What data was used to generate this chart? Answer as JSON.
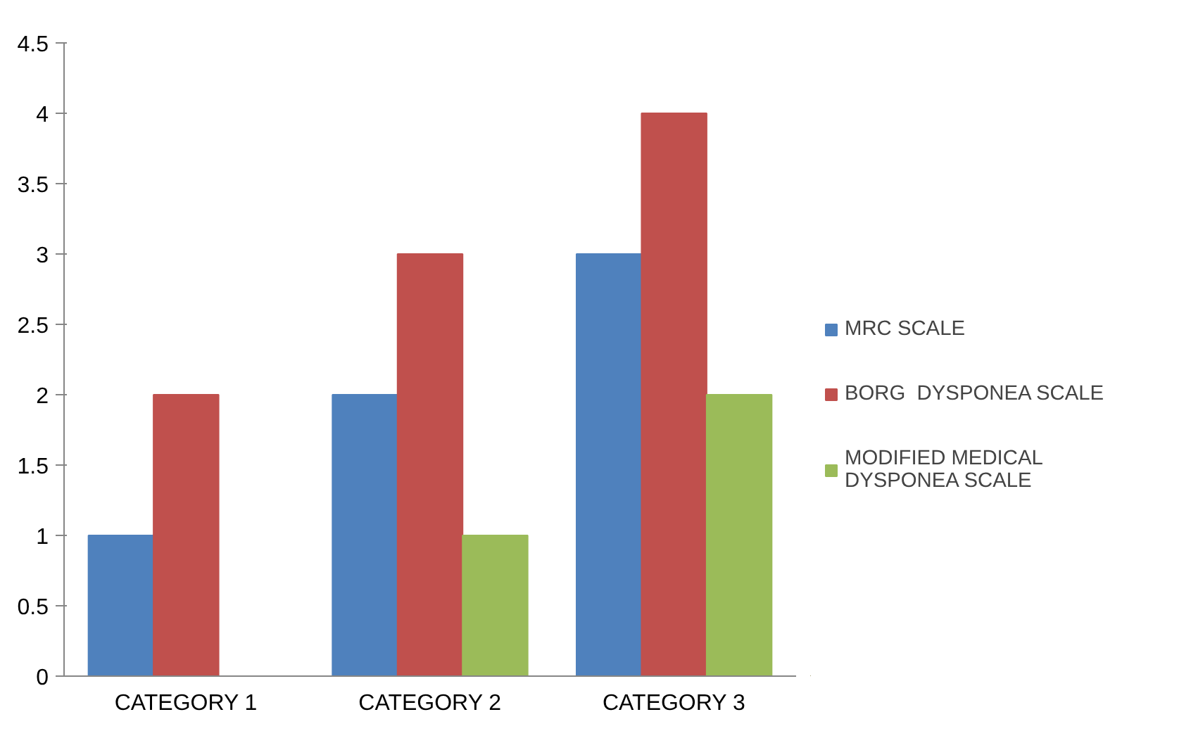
{
  "chart_data": {
    "type": "bar",
    "categories": [
      "CATEGORY 1",
      "CATEGORY 2",
      "CATEGORY 3"
    ],
    "series": [
      {
        "name": "MRC SCALE",
        "color": "#4f81bd",
        "values": [
          1,
          2,
          3
        ]
      },
      {
        "name": "BORG  DYSPONEA SCALE",
        "color": "#c0504d",
        "values": [
          2,
          3,
          4
        ]
      },
      {
        "name": "MODIFIED MEDICAL DYSPONEA SCALE",
        "color": "#9bbb59",
        "values": [
          0,
          1,
          2
        ]
      }
    ],
    "ylim": [
      0,
      4.5
    ],
    "yticks": [
      0,
      0.5,
      1,
      1.5,
      2,
      2.5,
      3,
      3.5,
      4,
      4.5
    ],
    "grid": false,
    "legend": "right"
  }
}
